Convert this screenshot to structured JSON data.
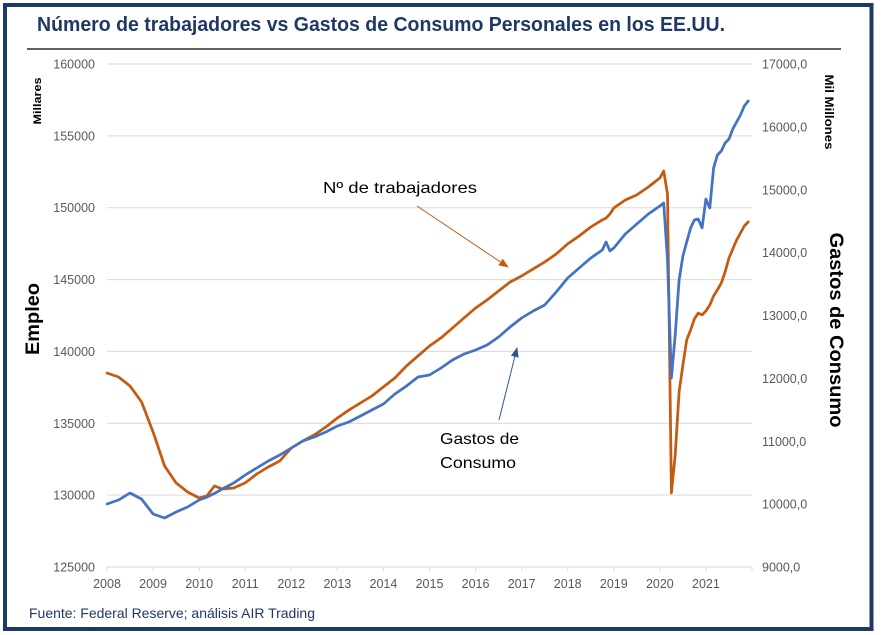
{
  "footer": {
    "source": "Fuente: Federal Reserve; análisis AIR Trading"
  },
  "chart_data": {
    "type": "line",
    "title": "Número de trabajadores vs Gastos de Consumo Personales en los EE.UU.",
    "xlabel": "",
    "x_ticks": [
      "2008",
      "2009",
      "2010",
      "2011",
      "2012",
      "2013",
      "2014",
      "2015",
      "2016",
      "2017",
      "2018",
      "2019",
      "2020",
      "2021"
    ],
    "xlim": [
      "2008-01",
      "2022-01"
    ],
    "x": [
      "2008-01",
      "2008-04",
      "2008-07",
      "2008-10",
      "2009-01",
      "2009-04",
      "2009-07",
      "2009-10",
      "2010-01",
      "2010-03",
      "2010-05",
      "2010-07",
      "2010-10",
      "2011-01",
      "2011-04",
      "2011-07",
      "2011-10",
      "2012-01",
      "2012-04",
      "2012-07",
      "2012-10",
      "2013-01",
      "2013-04",
      "2013-07",
      "2013-10",
      "2014-01",
      "2014-04",
      "2014-07",
      "2014-10",
      "2015-01",
      "2015-04",
      "2015-07",
      "2015-10",
      "2016-01",
      "2016-04",
      "2016-07",
      "2016-10",
      "2017-01",
      "2017-04",
      "2017-07",
      "2017-10",
      "2018-01",
      "2018-04",
      "2018-07",
      "2018-10",
      "2018-11",
      "2018-12",
      "2019-01",
      "2019-04",
      "2019-07",
      "2019-10",
      "2020-01",
      "2020-02",
      "2020-03",
      "2020-04",
      "2020-05",
      "2020-06",
      "2020-07",
      "2020-08",
      "2020-09",
      "2020-10",
      "2020-11",
      "2020-12",
      "2021-01",
      "2021-02",
      "2021-03",
      "2021-04",
      "2021-05",
      "2021-06",
      "2021-07",
      "2021-08",
      "2021-09",
      "2021-10",
      "2021-11",
      "2021-12"
    ],
    "series": [
      {
        "name": "Nº de trabajadores",
        "axis": "left",
        "color": "#C55A11",
        "values": [
          138500,
          138220,
          137600,
          136480,
          134390,
          132030,
          130850,
          130220,
          129800,
          129940,
          130640,
          130430,
          130500,
          130850,
          131470,
          131960,
          132380,
          133280,
          133770,
          134190,
          134740,
          135370,
          135920,
          136410,
          136900,
          137530,
          138150,
          138990,
          139690,
          140380,
          140940,
          141630,
          142330,
          143020,
          143580,
          144210,
          144830,
          145250,
          145740,
          146220,
          146780,
          147480,
          148030,
          148660,
          149150,
          149280,
          149560,
          149980,
          150540,
          150890,
          151440,
          152070,
          152560,
          150960,
          130150,
          132790,
          137180,
          139060,
          140800,
          141490,
          142260,
          142670,
          142540,
          142810,
          143230,
          143860,
          144280,
          144760,
          145530,
          146500,
          147130,
          147750,
          148240,
          148730,
          149010
        ]
      },
      {
        "name": "Gastos de Consumo",
        "axis": "right",
        "color": "#4472C4",
        "values": [
          10002,
          10065,
          10177,
          10080,
          9843,
          9779,
          9875,
          9954,
          10065,
          10110,
          10170,
          10240,
          10336,
          10463,
          10574,
          10686,
          10781,
          10893,
          11004,
          11067,
          11147,
          11242,
          11306,
          11401,
          11497,
          11592,
          11751,
          11879,
          12022,
          12054,
          12165,
          12292,
          12388,
          12451,
          12531,
          12658,
          12817,
          12960,
          13071,
          13167,
          13374,
          13596,
          13755,
          13914,
          14042,
          14169,
          14026,
          14074,
          14296,
          14455,
          14614,
          14741,
          14789,
          13883,
          12006,
          12690,
          13565,
          13946,
          14169,
          14392,
          14519,
          14535,
          14392,
          14853,
          14710,
          15346,
          15553,
          15616,
          15743,
          15807,
          15966,
          16078,
          16189,
          16332,
          16412
        ]
      }
    ],
    "y_left": {
      "label": "Empleo",
      "unit_label": "Millares",
      "range": [
        125000,
        160000
      ],
      "ticks": [
        125000,
        130000,
        135000,
        140000,
        145000,
        150000,
        155000,
        160000
      ],
      "tick_labels": [
        "125000",
        "130000",
        "135000",
        "140000",
        "145000",
        "150000",
        "155000",
        "160000"
      ]
    },
    "y_right": {
      "label": "Gastos de Consumo",
      "unit_label": "Mil Millones",
      "range": [
        9000,
        17000
      ],
      "ticks": [
        9000,
        10000,
        11000,
        12000,
        13000,
        14000,
        15000,
        16000,
        17000
      ],
      "tick_labels": [
        "9000,0",
        "10000,0",
        "11000,0",
        "12000,0",
        "13000,0",
        "14000,0",
        "15000,0",
        "16000,0",
        "17000,0"
      ]
    },
    "annotations": [
      {
        "series": "Nº de trabajadores",
        "lines": [
          "Nº de trabajadores"
        ]
      },
      {
        "series": "Gastos de Consumo",
        "lines": [
          "Gastos de",
          "Consumo"
        ]
      }
    ],
    "grid": "horizontal",
    "legend": "none"
  }
}
